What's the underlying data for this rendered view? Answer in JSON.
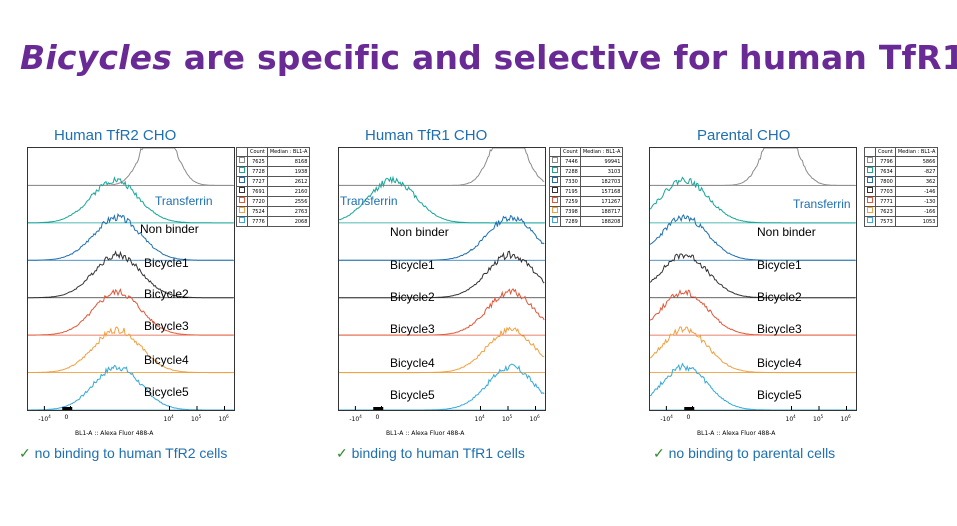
{
  "title": {
    "italic": "Bicycles",
    "rest": " are specific and selective for human TfR1"
  },
  "axis_ticks": [
    "-10",
    "0",
    "10",
    "10",
    "10"
  ],
  "axis_tick_exps": [
    "4",
    "",
    "4",
    "5",
    "6"
  ],
  "xlabel_a": "BL1-A :: Alexa Fluor",
  "xlabel_b": "488-A",
  "table_headers": [
    "Count",
    "Median : BL1-A"
  ],
  "series_colors": [
    "#8c8c8c",
    "#19a59a",
    "#1f6fb0",
    "#333333",
    "#e0583a",
    "#f0a040",
    "#35a9d8"
  ],
  "chart_data": [
    {
      "type": "histogram",
      "title": "Human TfR2 CHO",
      "footer": "no binding to human TfR2 cells",
      "check": "✓",
      "xscale": "biexponential",
      "labels": [
        "Transferrin",
        "Non binder",
        "Bicycle1",
        "Bicycle2",
        "Bicycle3",
        "Bicycle4",
        "Bicycle5"
      ],
      "peaks": [
        3.6,
        2.0,
        2.1,
        2.1,
        2.1,
        2.1,
        2.1
      ],
      "table": [
        [
          "7625",
          "8168"
        ],
        [
          "7728",
          "1938"
        ],
        [
          "7727",
          "2612"
        ],
        [
          "7691",
          "2160"
        ],
        [
          "7720",
          "2556"
        ],
        [
          "7524",
          "2763"
        ],
        [
          "7776",
          "2068"
        ]
      ]
    },
    {
      "type": "histogram",
      "title": "Human TfR1 CHO",
      "footer": "binding to human TfR1 cells",
      "check": "✓",
      "xscale": "biexponential",
      "labels": [
        "Transferrin",
        "Non binder",
        "Bicycle1",
        "Bicycle2",
        "Bicycle3",
        "Bicycle4",
        "Bicycle5"
      ],
      "peaks": [
        5.0,
        0.8,
        5.1,
        5.1,
        5.1,
        5.1,
        5.1
      ],
      "table": [
        [
          "7446",
          "99941"
        ],
        [
          "7288",
          "3103"
        ],
        [
          "7330",
          "182703"
        ],
        [
          "7195",
          "157168"
        ],
        [
          "7259",
          "171267"
        ],
        [
          "7398",
          "188717"
        ],
        [
          "7289",
          "188208"
        ]
      ]
    },
    {
      "type": "histogram",
      "title": "Parental CHO",
      "footer": "no binding to parental cells",
      "check": "✓",
      "xscale": "biexponential",
      "labels": [
        "Transferrin",
        "Non binder",
        "Bicycle1",
        "Bicycle2",
        "Bicycle3",
        "Bicycle4",
        "Bicycle5"
      ],
      "peaks": [
        3.6,
        0.1,
        0.1,
        0.1,
        0.1,
        0.1,
        0.1
      ],
      "table": [
        [
          "7796",
          "5866"
        ],
        [
          "7634",
          "-827"
        ],
        [
          "7800",
          "362"
        ],
        [
          "7703",
          "-146"
        ],
        [
          "7771",
          "-130"
        ],
        [
          "7623",
          "-166"
        ],
        [
          "7573",
          "1053"
        ]
      ]
    }
  ]
}
